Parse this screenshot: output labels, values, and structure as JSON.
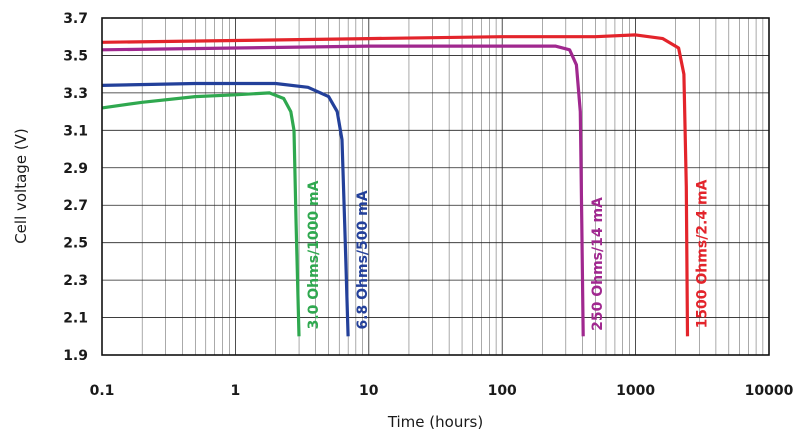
{
  "chart_data": {
    "type": "line",
    "xlabel": "Time (hours)",
    "ylabel": "Cell voltage (V)",
    "xscale": "log",
    "xlim": [
      0.1,
      10000
    ],
    "ylim": [
      1.9,
      3.7
    ],
    "xticks": [
      "0.1",
      "1",
      "10",
      "100",
      "1000",
      "10000"
    ],
    "yticks": [
      "1.9",
      "2.1",
      "2.3",
      "2.5",
      "2.7",
      "2.9",
      "3.1",
      "3.3",
      "3.5",
      "3.7"
    ],
    "grid": true,
    "series": [
      {
        "name": "3.0 Ohms/1000 mA",
        "color": "#2fa84f",
        "points": [
          [
            0.1,
            3.22
          ],
          [
            0.2,
            3.25
          ],
          [
            0.5,
            3.28
          ],
          [
            1.0,
            3.29
          ],
          [
            1.8,
            3.3
          ],
          [
            2.3,
            3.27
          ],
          [
            2.6,
            3.2
          ],
          [
            2.75,
            3.1
          ],
          [
            2.85,
            2.6
          ],
          [
            3.0,
            2.0
          ]
        ]
      },
      {
        "name": "6.8 Ohms/500 mA",
        "color": "#23409a",
        "points": [
          [
            0.1,
            3.34
          ],
          [
            0.5,
            3.35
          ],
          [
            1.0,
            3.35
          ],
          [
            2.0,
            3.35
          ],
          [
            3.5,
            3.33
          ],
          [
            5.0,
            3.28
          ],
          [
            5.8,
            3.2
          ],
          [
            6.3,
            3.05
          ],
          [
            6.6,
            2.6
          ],
          [
            7.0,
            2.0
          ]
        ]
      },
      {
        "name": "250 Ohms/14 mA",
        "color": "#a0288f",
        "points": [
          [
            0.1,
            3.53
          ],
          [
            1.0,
            3.54
          ],
          [
            10,
            3.55
          ],
          [
            100,
            3.55
          ],
          [
            250,
            3.55
          ],
          [
            320,
            3.53
          ],
          [
            360,
            3.45
          ],
          [
            385,
            3.2
          ],
          [
            395,
            2.6
          ],
          [
            405,
            2.0
          ]
        ]
      },
      {
        "name": "1500 Ohms/2.4 mA",
        "color": "#e3242b",
        "points": [
          [
            0.1,
            3.57
          ],
          [
            1.0,
            3.58
          ],
          [
            10,
            3.59
          ],
          [
            100,
            3.6
          ],
          [
            500,
            3.6
          ],
          [
            1000,
            3.61
          ],
          [
            1600,
            3.59
          ],
          [
            2100,
            3.54
          ],
          [
            2300,
            3.4
          ],
          [
            2400,
            2.8
          ],
          [
            2450,
            2.0
          ]
        ]
      }
    ]
  }
}
